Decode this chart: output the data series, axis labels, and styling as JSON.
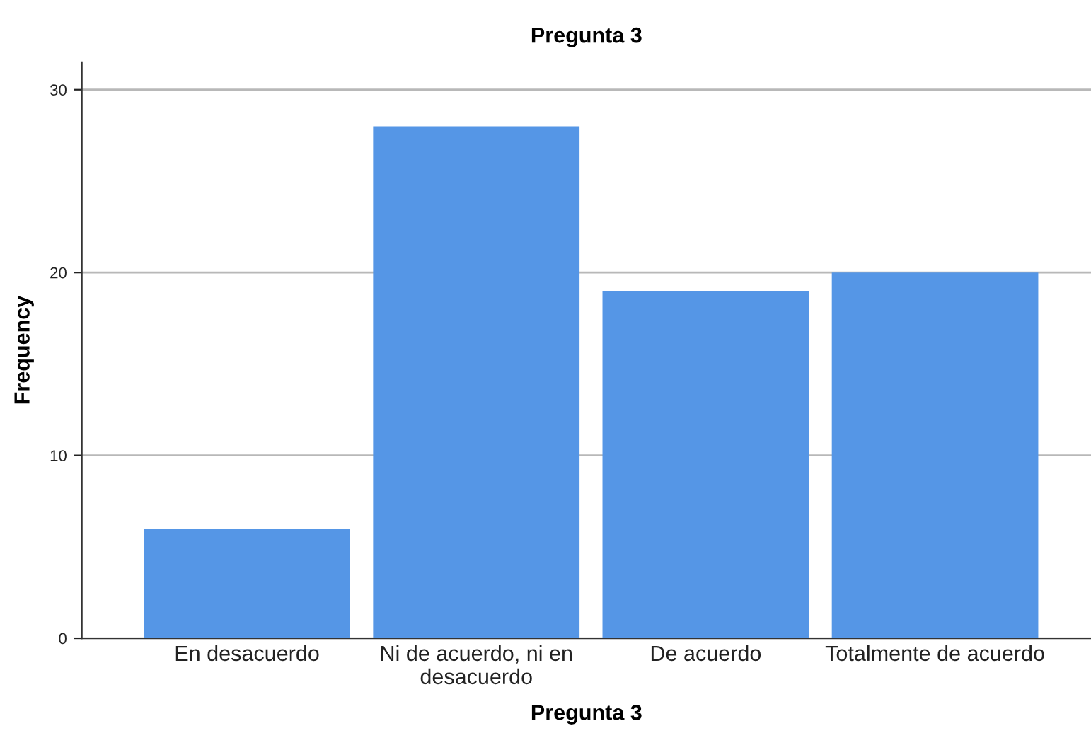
{
  "chart_data": {
    "type": "bar",
    "title": "Pregunta 3",
    "xlabel": "Pregunta 3",
    "ylabel": "Frequency",
    "categories": [
      "En desacuerdo",
      "Ni de acuerdo, ni en desacuerdo",
      "De acuerdo",
      "Totalmente de acuerdo"
    ],
    "values": [
      6,
      28,
      19,
      20
    ],
    "color": "#5596e6",
    "ylim": [
      0,
      31.5
    ],
    "yticks": [
      0,
      10,
      20,
      30
    ],
    "grid": "y"
  }
}
